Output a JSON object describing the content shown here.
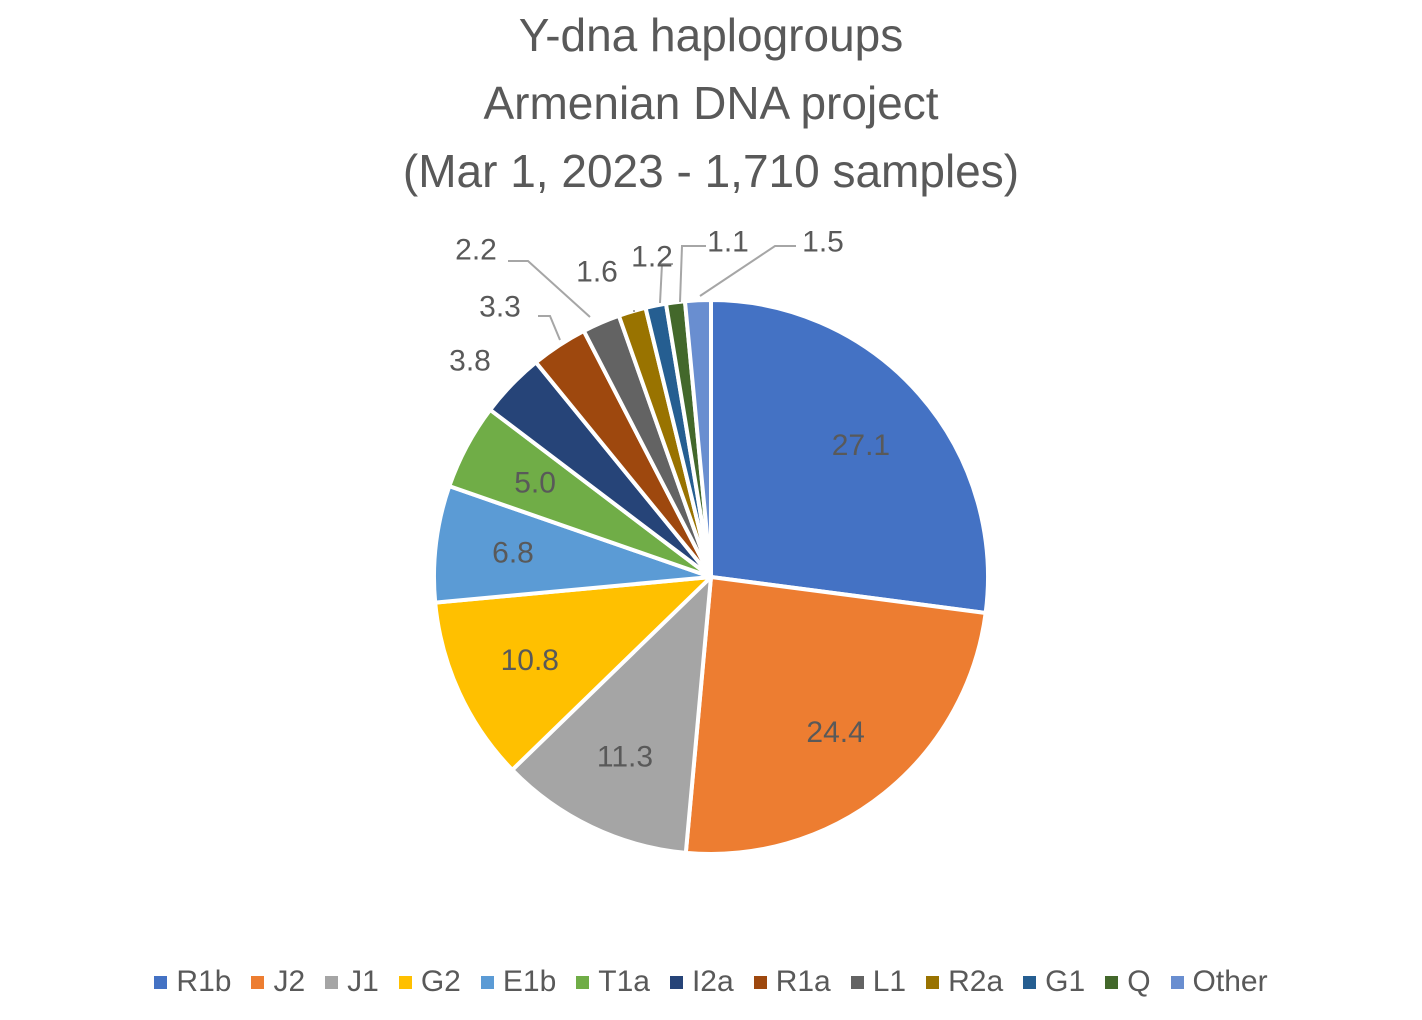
{
  "chart_data": {
    "type": "pie",
    "title_lines": [
      "Y-dna haplogroups",
      "Armenian DNA project",
      "(Mar 1, 2023 - 1,710 samples)"
    ],
    "slices": [
      {
        "label": "R1b",
        "value": 27.1,
        "display": "27.1",
        "color": "#4472C4"
      },
      {
        "label": "J2",
        "value": 24.4,
        "display": "24.4",
        "color": "#ED7D31"
      },
      {
        "label": "J1",
        "value": 11.3,
        "display": "11.3",
        "color": "#A5A5A5"
      },
      {
        "label": "G2",
        "value": 10.8,
        "display": "10.8",
        "color": "#FFC000"
      },
      {
        "label": "E1b",
        "value": 6.8,
        "display": "6.8",
        "color": "#5B9BD5"
      },
      {
        "label": "T1a",
        "value": 5.0,
        "display": "5.0",
        "color": "#70AD47"
      },
      {
        "label": "I2a",
        "value": 3.8,
        "display": "3.8",
        "color": "#264478"
      },
      {
        "label": "R1a",
        "value": 3.3,
        "display": "3.3",
        "color": "#9E480E"
      },
      {
        "label": "L1",
        "value": 2.2,
        "display": "2.2",
        "color": "#636363"
      },
      {
        "label": "R2a",
        "value": 1.6,
        "display": "1.6",
        "color": "#997300"
      },
      {
        "label": "G1",
        "value": 1.2,
        "display": "1.2",
        "color": "#255E91"
      },
      {
        "label": "Q",
        "value": 1.1,
        "display": "1.1",
        "color": "#43682B"
      },
      {
        "label": "Other",
        "value": 1.5,
        "display": "1.5",
        "color": "#698ED0"
      }
    ],
    "legend_position": "bottom",
    "text_color": "#595959"
  }
}
